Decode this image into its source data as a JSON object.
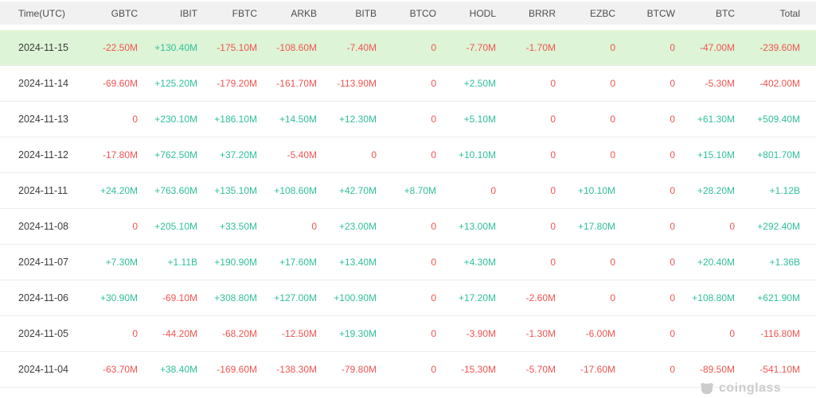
{
  "table": {
    "columns": [
      "Time(UTC)",
      "GBTC",
      "IBIT",
      "FBTC",
      "ARKB",
      "BITB",
      "BTCO",
      "HODL",
      "BRRR",
      "EZBC",
      "BTCW",
      "BTC",
      "Total"
    ],
    "rows": [
      {
        "date": "2024-11-15",
        "highlighted": true,
        "values": [
          "-22.50M",
          "+130.40M",
          "-175.10M",
          "-108.60M",
          "-7.40M",
          "0",
          "-7.70M",
          "-1.70M",
          "0",
          "0",
          "-47.00M",
          "-239.60M"
        ]
      },
      {
        "date": "2024-11-14",
        "highlighted": false,
        "values": [
          "-69.60M",
          "+125.20M",
          "-179.20M",
          "-161.70M",
          "-113.90M",
          "0",
          "+2.50M",
          "0",
          "0",
          "0",
          "-5.30M",
          "-402.00M"
        ]
      },
      {
        "date": "2024-11-13",
        "highlighted": false,
        "values": [
          "0",
          "+230.10M",
          "+186.10M",
          "+14.50M",
          "+12.30M",
          "0",
          "+5.10M",
          "0",
          "0",
          "0",
          "+61.30M",
          "+509.40M"
        ]
      },
      {
        "date": "2024-11-12",
        "highlighted": false,
        "values": [
          "-17.80M",
          "+762.50M",
          "+37.20M",
          "-5.40M",
          "0",
          "0",
          "+10.10M",
          "0",
          "0",
          "0",
          "+15.10M",
          "+801.70M"
        ]
      },
      {
        "date": "2024-11-11",
        "highlighted": false,
        "values": [
          "+24.20M",
          "+763.60M",
          "+135.10M",
          "+108.60M",
          "+42.70M",
          "+8.70M",
          "0",
          "0",
          "+10.10M",
          "0",
          "+28.20M",
          "+1.12B"
        ]
      },
      {
        "date": "2024-11-08",
        "highlighted": false,
        "values": [
          "0",
          "+205.10M",
          "+33.50M",
          "0",
          "+23.00M",
          "0",
          "+13.00M",
          "0",
          "+17.80M",
          "0",
          "0",
          "+292.40M"
        ]
      },
      {
        "date": "2024-11-07",
        "highlighted": false,
        "values": [
          "+7.30M",
          "+1.11B",
          "+190.90M",
          "+17.60M",
          "+13.40M",
          "0",
          "+4.30M",
          "0",
          "0",
          "0",
          "+20.40M",
          "+1.36B"
        ]
      },
      {
        "date": "2024-11-06",
        "highlighted": false,
        "values": [
          "+30.90M",
          "-69.10M",
          "+308.80M",
          "+127.00M",
          "+100.90M",
          "0",
          "+17.20M",
          "-2.60M",
          "0",
          "0",
          "+108.80M",
          "+621.90M"
        ]
      },
      {
        "date": "2024-11-05",
        "highlighted": false,
        "values": [
          "0",
          "-44.20M",
          "-68.20M",
          "-12.50M",
          "+19.30M",
          "0",
          "-3.90M",
          "-1.30M",
          "-6.00M",
          "0",
          "0",
          "-116.80M"
        ]
      },
      {
        "date": "2024-11-04",
        "highlighted": false,
        "values": [
          "-63.70M",
          "+38.40M",
          "-169.60M",
          "-138.30M",
          "-79.80M",
          "0",
          "-15.30M",
          "-5.70M",
          "-17.60M",
          "0",
          "-89.50M",
          "-541.10M"
        ]
      }
    ]
  },
  "colors": {
    "positive": "#2fbf9a",
    "negative": "#ee5551",
    "highlight_row_bg": "#def4d6",
    "header_bg": "#f1f1f1",
    "watermark": "#cccccc"
  },
  "watermark": {
    "brand": "coinglass"
  }
}
